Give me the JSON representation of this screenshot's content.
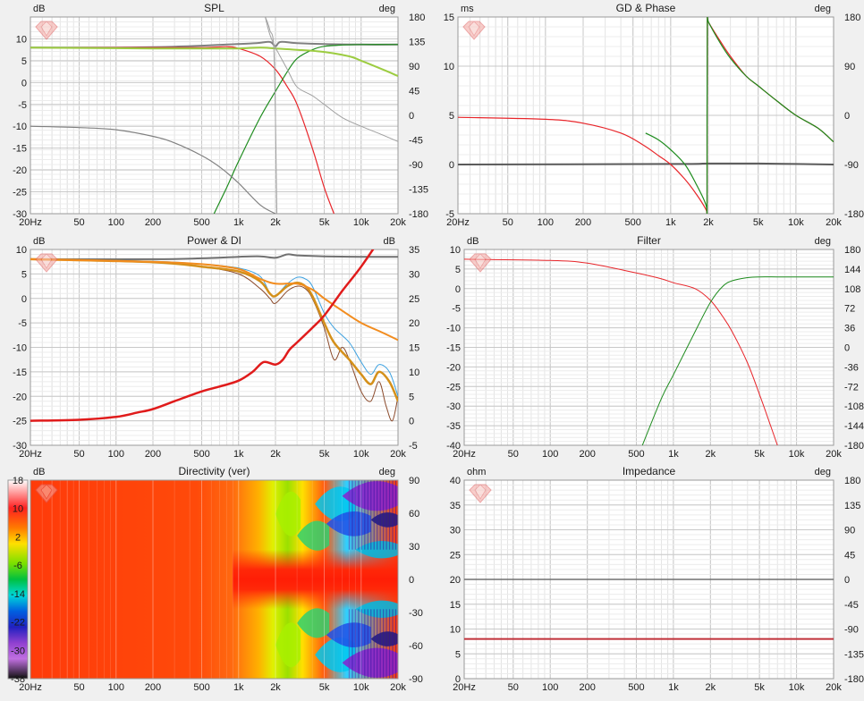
{
  "chart_data": [
    {
      "id": "spl",
      "type": "line",
      "title": "SPL",
      "ylabel_left": "dB",
      "ylabel_right": "deg",
      "x_scale": "log",
      "xlim": [
        20,
        20000
      ],
      "ylim": [
        -30,
        15
      ],
      "y2lim": [
        -180,
        180
      ],
      "x_tick_labels": [
        "20Hz",
        "50",
        "100",
        "200",
        "500",
        "1k",
        "2k",
        "5k",
        "10k",
        "20k"
      ],
      "y_tick_labels": [
        "10",
        "5",
        "0",
        "-5",
        "-10",
        "-15",
        "-20",
        "-25",
        "-30"
      ],
      "y2_tick_labels": [
        "180",
        "135",
        "90",
        "45",
        "0",
        "-45",
        "-90",
        "-135",
        "-180"
      ],
      "grid": true,
      "series": [
        {
          "color": "#808080",
          "width": 2,
          "x": [
            20,
            100,
            300,
            800,
            1400,
            1800,
            2000,
            2200,
            3000,
            5000,
            10000,
            20000
          ],
          "y": [
            8,
            8,
            8.2,
            8.7,
            9,
            9.3,
            8.3,
            9.3,
            9,
            8.8,
            8.7,
            8.7
          ]
        },
        {
          "color": "#e8252a",
          "width": 1.2,
          "x": [
            20,
            200,
            500,
            800,
            1000,
            1500,
            2000,
            2500,
            3000,
            4000,
            5000,
            6000
          ],
          "y": [
            8,
            8,
            8,
            8.2,
            7.8,
            6,
            3,
            -1,
            -5,
            -15,
            -24,
            -30
          ]
        },
        {
          "color": "#1e8c1e",
          "width": 1.2,
          "x": [
            630,
            800,
            1000,
            1500,
            2000,
            2500,
            3000,
            4000,
            5000,
            7000,
            10000,
            20000
          ],
          "y": [
            -30,
            -24,
            -18,
            -8,
            -2,
            2.5,
            5.5,
            7.5,
            8.3,
            8.6,
            8.7,
            8.7
          ]
        },
        {
          "color": "#9ccc40",
          "width": 2,
          "x": [
            20,
            200,
            600,
            1000,
            1500,
            2000,
            3000,
            5000,
            8000,
            10000,
            15000,
            20000
          ],
          "y": [
            8,
            7.8,
            7.8,
            7.8,
            8,
            7.8,
            7.5,
            7,
            6,
            5,
            3,
            1.5
          ]
        },
        {
          "color": "#a0a0a0",
          "width": 1,
          "x": [
            1650,
            1800,
            2000,
            2500,
            3000,
            4000,
            5000,
            7000,
            10000,
            15000,
            20000
          ],
          "y": [
            15,
            11,
            8,
            3,
            -1,
            -3,
            -5,
            -8,
            -10,
            -12,
            -13.5
          ]
        },
        {
          "color": "#a0a0a0",
          "width": 1,
          "x": [
            1650,
            1800,
            1950,
            2050
          ],
          "y": [
            15,
            12,
            6,
            -30
          ]
        },
        {
          "color": "#808080",
          "width": 1.2,
          "x": [
            20,
            50,
            100,
            200,
            300,
            500,
            700,
            1000,
            1500,
            2000
          ],
          "y": [
            -10,
            -10.3,
            -10.8,
            -12.3,
            -13.8,
            -16.7,
            -19.3,
            -23,
            -28,
            -30
          ]
        }
      ]
    },
    {
      "id": "gd_phase",
      "type": "line",
      "title": "GD & Phase",
      "ylabel_left": "ms",
      "ylabel_right": "deg",
      "x_scale": "log",
      "xlim": [
        20,
        20000
      ],
      "ylim": [
        -5,
        15
      ],
      "y2lim": [
        -180,
        180
      ],
      "x_tick_labels": [
        "20Hz",
        "50",
        "100",
        "200",
        "500",
        "1k",
        "2k",
        "5k",
        "10k",
        "20k"
      ],
      "y_tick_labels": [
        "15",
        "10",
        "5",
        "0",
        "-5"
      ],
      "y2_tick_labels": [
        "180",
        "90",
        "0",
        "-90",
        "-180"
      ],
      "grid": true,
      "series": [
        {
          "color": "#5a5a5a",
          "width": 2,
          "x": [
            20,
            1000,
            2000,
            5000,
            10000,
            20000
          ],
          "y": [
            0,
            0.05,
            0.1,
            0.1,
            0.05,
            0
          ]
        },
        {
          "color": "#e8252a",
          "width": 1.2,
          "x": [
            20,
            100,
            200,
            400,
            600,
            800,
            1000,
            1300,
            1600,
            1900,
            1950
          ],
          "y": [
            4.8,
            4.6,
            4.2,
            3.2,
            2,
            0.9,
            0,
            -1.5,
            -3,
            -4.5,
            -5
          ]
        },
        {
          "color": "#e8252a",
          "width": 1.2,
          "x": [
            1950,
            1960,
            2000,
            2500,
            3000,
            4000,
            5000,
            7000,
            10000,
            15000,
            20000
          ],
          "y": [
            -5,
            15,
            14.5,
            12.5,
            11,
            9,
            8,
            6.5,
            5,
            3.7,
            2.3
          ]
        },
        {
          "color": "#1e8c1e",
          "width": 1.2,
          "x": [
            630,
            800,
            1000,
            1300,
            1600,
            1900,
            1950
          ],
          "y": [
            3.2,
            2.5,
            1.5,
            0,
            -2,
            -4,
            -5
          ]
        },
        {
          "color": "#1e8c1e",
          "width": 1.2,
          "x": [
            1950,
            1960,
            2000,
            2500,
            3000,
            4000,
            5000,
            7000,
            10000,
            15000,
            20000
          ],
          "y": [
            -5,
            15,
            14.5,
            12.3,
            10.8,
            9,
            8,
            6.5,
            5,
            3.7,
            2.3
          ]
        }
      ]
    },
    {
      "id": "power_di",
      "type": "line",
      "title": "Power & DI",
      "ylabel_left": "dB",
      "ylabel_right": "dB",
      "x_scale": "log",
      "xlim": [
        20,
        20000
      ],
      "ylim": [
        -30,
        10
      ],
      "y2lim": [
        -5,
        35
      ],
      "x_tick_labels": [
        "20Hz",
        "50",
        "100",
        "200",
        "500",
        "1k",
        "2k",
        "5k",
        "10k",
        "20k"
      ],
      "y_tick_labels": [
        "10",
        "5",
        "0",
        "-5",
        "-10",
        "-15",
        "-20",
        "-25",
        "-30"
      ],
      "y2_tick_labels": [
        "35",
        "30",
        "25",
        "20",
        "15",
        "10",
        "5",
        "0",
        "-5"
      ],
      "grid": true,
      "series": [
        {
          "color": "#707070",
          "width": 2,
          "x": [
            20,
            200,
            500,
            1000,
            1500,
            2000,
            2500,
            3000,
            5000,
            10000,
            20000
          ],
          "y": [
            8,
            8,
            8.2,
            8.5,
            8.6,
            8.3,
            9,
            8.8,
            8.6,
            8.5,
            8.5
          ]
        },
        {
          "color": "#3aa0e0",
          "width": 1,
          "x": [
            20,
            200,
            500,
            1000,
            1500,
            1800,
            2000,
            2500,
            3000,
            3500,
            4000,
            5000,
            6000,
            8000,
            10000,
            12000,
            14000,
            17000,
            20000
          ],
          "y": [
            8,
            7.6,
            7,
            6.2,
            4.5,
            1,
            0.5,
            3,
            4.3,
            4,
            2.5,
            -3,
            -6,
            -9,
            -13,
            -15.5,
            -13.5,
            -15,
            -20
          ]
        },
        {
          "color": "#8b4a2b",
          "width": 1,
          "x": [
            20,
            200,
            500,
            1000,
            1500,
            1800,
            2000,
            2500,
            3000,
            3500,
            4000,
            5000,
            6000,
            7000,
            8000,
            10000,
            12000,
            14000,
            16000,
            18000,
            20000
          ],
          "y": [
            8,
            7.5,
            6.5,
            5,
            2,
            0,
            -1,
            1.5,
            2.5,
            2,
            0,
            -6,
            -12.5,
            -10,
            -12.5,
            -19,
            -21,
            -17,
            -22,
            -25,
            -20
          ]
        },
        {
          "color": "#d4901a",
          "width": 2.5,
          "x": [
            20,
            200,
            500,
            1000,
            1500,
            1800,
            2000,
            2500,
            3000,
            3500,
            4000,
            5000,
            6000,
            8000,
            10000,
            12000,
            14000,
            17000,
            20000
          ],
          "y": [
            8,
            7.4,
            6.5,
            5.5,
            3.5,
            1,
            0.5,
            2.5,
            3.2,
            2.5,
            0.5,
            -5,
            -9,
            -12.5,
            -15.5,
            -17.5,
            -15,
            -17,
            -21
          ]
        },
        {
          "color": "#f28c1e",
          "width": 2,
          "x": [
            20,
            200,
            500,
            1000,
            1500,
            2000,
            3000,
            4000,
            5000,
            7000,
            10000,
            15000,
            20000
          ],
          "y": [
            8,
            7.5,
            7,
            6,
            4,
            3,
            3,
            1.8,
            0,
            -2.5,
            -5,
            -7,
            -8.5
          ]
        },
        {
          "color": "#e01b1b",
          "width": 2.5,
          "x": [
            20,
            50,
            100,
            150,
            200,
            300,
            500,
            700,
            1000,
            1300,
            1600,
            2000,
            2300,
            2600,
            3000,
            4000,
            5000,
            7000,
            10000,
            15000,
            20000
          ],
          "y": [
            -25,
            -24.8,
            -24.2,
            -23.3,
            -22.6,
            -21,
            -19,
            -18,
            -16.8,
            -15,
            -13,
            -13.5,
            -12.5,
            -10.5,
            -9,
            -6,
            -3.5,
            1.5,
            6.5,
            13,
            18
          ]
        }
      ]
    },
    {
      "id": "filter",
      "type": "line",
      "title": "Filter",
      "ylabel_left": "dB",
      "ylabel_right": "deg",
      "x_scale": "log",
      "xlim": [
        20,
        20000
      ],
      "ylim": [
        -40,
        10
      ],
      "y2lim": [
        -180,
        180
      ],
      "x_tick_labels": [
        "20Hz",
        "50",
        "100",
        "200",
        "500",
        "1k",
        "2k",
        "5k",
        "10k",
        "20k"
      ],
      "y_tick_labels": [
        "10",
        "5",
        "0",
        "-5",
        "-10",
        "-15",
        "-20",
        "-25",
        "-30",
        "-35",
        "-40"
      ],
      "y2_tick_labels": [
        "180",
        "144",
        "108",
        "72",
        "36",
        "0",
        "-36",
        "-72",
        "-108",
        "-144",
        "-180"
      ],
      "grid": true,
      "series": [
        {
          "color": "#e8252a",
          "width": 1,
          "x": [
            20,
            100,
            200,
            500,
            800,
            1000,
            1500,
            2000,
            2500,
            3000,
            4000,
            5000,
            6000,
            7000
          ],
          "y": [
            7.5,
            7.2,
            6.5,
            4,
            2.5,
            1.5,
            0,
            -3,
            -7,
            -11,
            -19,
            -27,
            -34,
            -40
          ]
        },
        {
          "color": "#1e8c1e",
          "width": 1,
          "x": [
            560,
            800,
            1000,
            1500,
            2000,
            2500,
            3000,
            4000,
            5000,
            7000,
            10000,
            20000
          ],
          "y": [
            -40,
            -28,
            -22,
            -11,
            -3.5,
            0.5,
            2,
            2.8,
            3,
            3,
            3,
            3
          ]
        }
      ]
    },
    {
      "id": "directivity",
      "type": "heatmap",
      "title": "Directivity (ver)",
      "ylabel_left": "dB",
      "ylabel_right": "deg",
      "x_scale": "log",
      "xlim": [
        20,
        20000
      ],
      "ylim": [
        -90,
        90
      ],
      "colorbar_range": [
        -38,
        18
      ],
      "x_tick_labels": [
        "20Hz",
        "50",
        "100",
        "200",
        "500",
        "1k",
        "2k",
        "5k",
        "10k",
        "20k"
      ],
      "y2_tick_labels": [
        "90",
        "60",
        "30",
        "0",
        "-30",
        "-60",
        "-90"
      ],
      "colorbar_labels": [
        "18",
        "10",
        "2",
        "-6",
        "-14",
        "-22",
        "-30",
        "-38"
      ]
    },
    {
      "id": "impedance",
      "type": "line",
      "title": "Impedance",
      "ylabel_left": "ohm",
      "ylabel_right": "deg",
      "x_scale": "log",
      "xlim": [
        20,
        20000
      ],
      "ylim": [
        0,
        40
      ],
      "y2lim": [
        -180,
        180
      ],
      "x_tick_labels": [
        "20Hz",
        "50",
        "100",
        "200",
        "500",
        "1k",
        "2k",
        "5k",
        "10k",
        "20k"
      ],
      "y_tick_labels": [
        "40",
        "35",
        "30",
        "25",
        "20",
        "15",
        "10",
        "5",
        "0"
      ],
      "y2_tick_labels": [
        "180",
        "135",
        "90",
        "45",
        "0",
        "-45",
        "-90",
        "-135",
        "-180"
      ],
      "grid": true,
      "series": [
        {
          "color": "#707070",
          "width": 1.5,
          "x": [
            20,
            20000
          ],
          "y": [
            20,
            20
          ]
        },
        {
          "color": "#c0303a",
          "width": 2,
          "x": [
            20,
            20000
          ],
          "y": [
            8,
            8
          ]
        }
      ]
    }
  ]
}
